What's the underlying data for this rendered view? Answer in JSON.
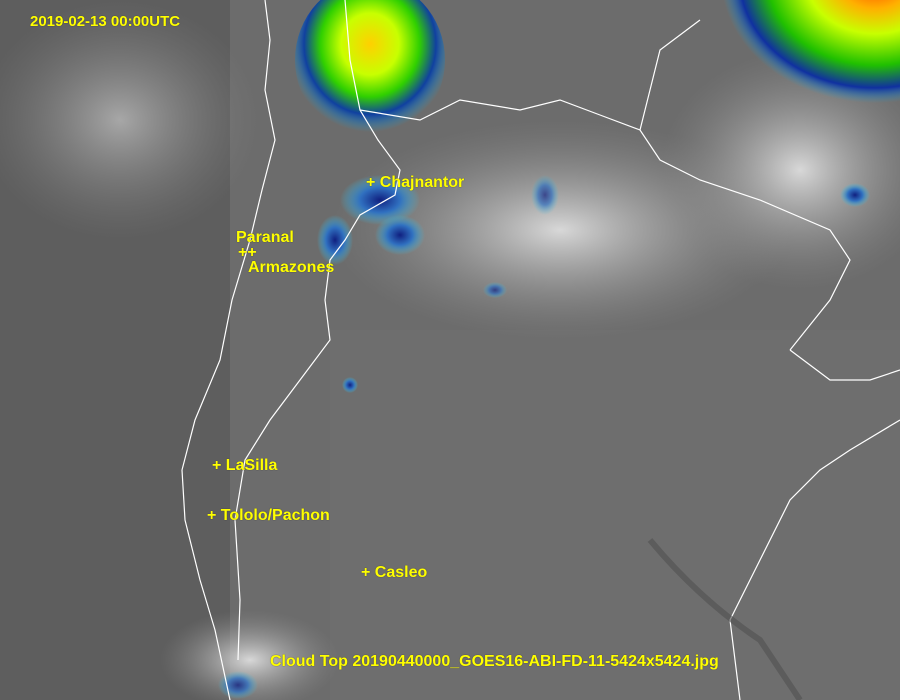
{
  "timestamp": "2019-02-13 00:00UTC",
  "caption": "Cloud Top 20190440000_GOES16-ABI-FD-11-5424x5424.jpg",
  "sites": [
    {
      "name": "Chajnantor",
      "label": "+ Chajnantor"
    },
    {
      "name": "Paranal",
      "label": "Paranal"
    },
    {
      "name": "Paranal/Armazones markers",
      "label": "++"
    },
    {
      "name": "Armazones",
      "label": "Armazones"
    },
    {
      "name": "LaSilla",
      "label": "+ LaSilla"
    },
    {
      "name": "Tololo/Pachon",
      "label": "+ Tololo/Pachon"
    },
    {
      "name": "Casleo",
      "label": "+ Casleo"
    }
  ],
  "colors": {
    "label": "#ffff00",
    "border": "#ffffff",
    "background": "#6a6a6a",
    "cold_top_green": "#7cff00",
    "cold_top_red": "#ff3000",
    "cold_top_blue": "#1030a0"
  }
}
